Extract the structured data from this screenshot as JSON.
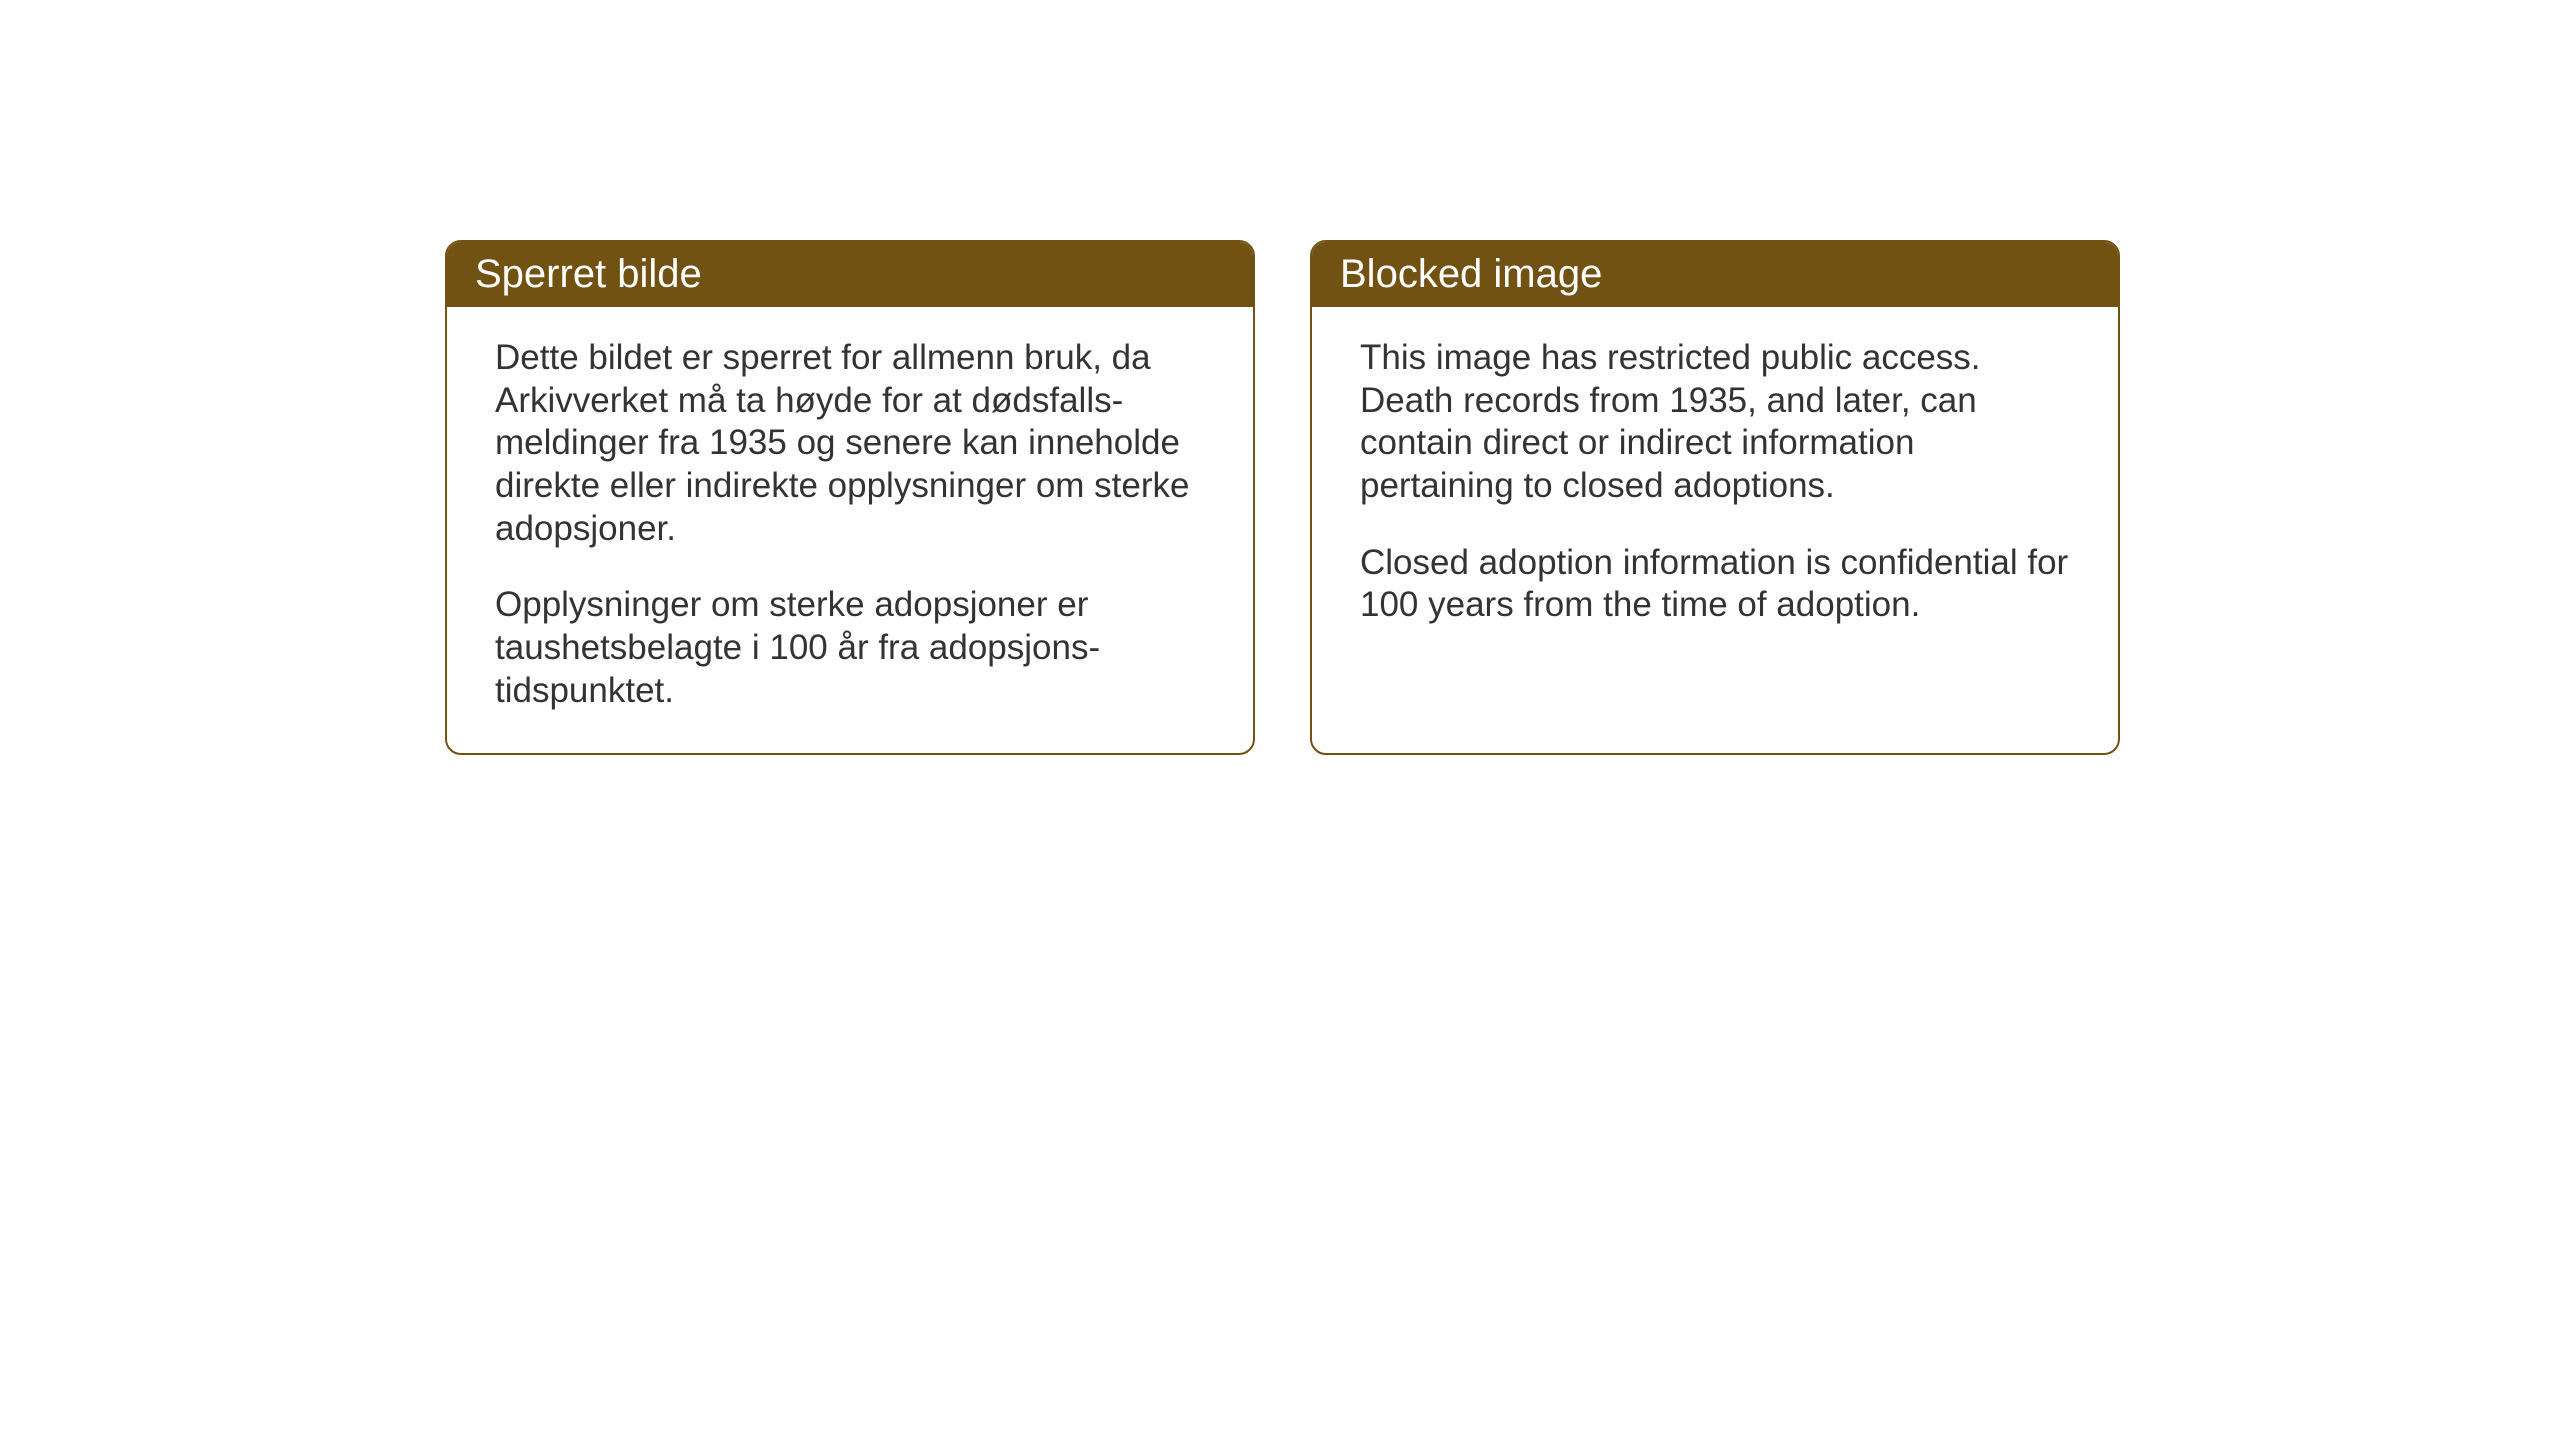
{
  "layout": {
    "background_color": "#ffffff",
    "card_border_color": "#715212",
    "card_header_bg": "#715212",
    "card_header_text_color": "#ffffff",
    "card_body_text_color": "#333333",
    "card_border_radius": 16,
    "header_fontsize": 40,
    "body_fontsize": 35
  },
  "cards": {
    "norwegian": {
      "title": "Sperret bilde",
      "paragraph1": "Dette bildet er sperret for allmenn bruk, da Arkivverket må ta høyde for at dødsfalls-meldinger fra 1935 og senere kan inneholde direkte eller indirekte opplysninger om sterke adopsjoner.",
      "paragraph2": "Opplysninger om sterke adopsjoner er taushetsbelagte i 100 år fra adopsjons-tidspunktet."
    },
    "english": {
      "title": "Blocked image",
      "paragraph1": "This image has restricted public access. Death records from 1935, and later, can contain direct or indirect information pertaining to closed adoptions.",
      "paragraph2": "Closed adoption information is confidential for 100 years from the time of adoption."
    }
  }
}
